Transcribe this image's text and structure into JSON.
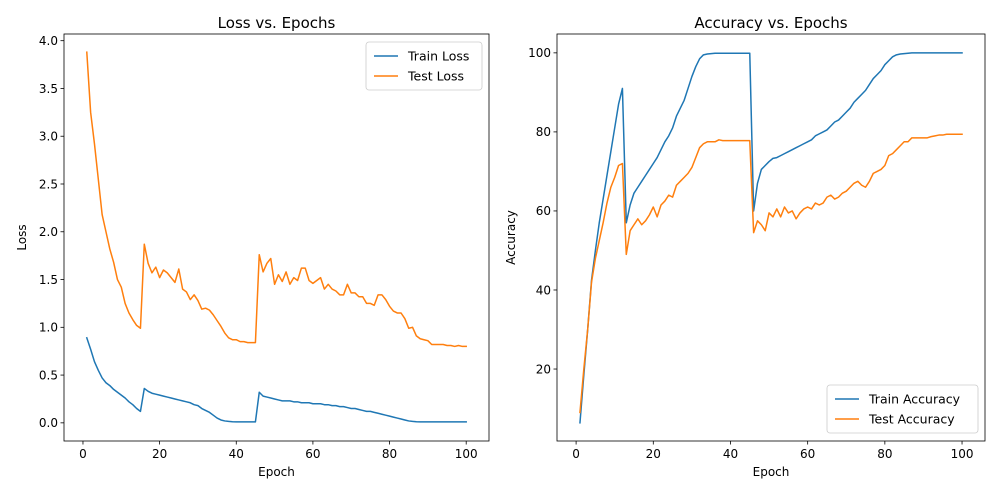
{
  "chart_data": [
    {
      "type": "line",
      "title": "Loss vs. Epochs",
      "xlabel": "Epoch",
      "ylabel": "Loss",
      "xlim": [
        -4.95,
        105.95
      ],
      "ylim": [
        -0.19,
        4.07
      ],
      "xticks": [
        0,
        20,
        40,
        60,
        80,
        100
      ],
      "yticks": [
        0.0,
        0.5,
        1.0,
        1.5,
        2.0,
        2.5,
        3.0,
        3.5,
        4.0
      ],
      "ytick_format": "fixed1",
      "grid": false,
      "legend": "top-right",
      "series": [
        {
          "name": "Train Loss",
          "color": "#1f77b4",
          "x": [
            1,
            2,
            3,
            4,
            5,
            6,
            7,
            8,
            9,
            10,
            11,
            12,
            13,
            14,
            15,
            16,
            17,
            18,
            19,
            20,
            21,
            22,
            23,
            24,
            25,
            26,
            27,
            28,
            29,
            30,
            31,
            32,
            33,
            34,
            35,
            36,
            37,
            38,
            39,
            40,
            41,
            42,
            43,
            44,
            45,
            46,
            47,
            48,
            49,
            50,
            51,
            52,
            53,
            54,
            55,
            56,
            57,
            58,
            59,
            60,
            61,
            62,
            63,
            64,
            65,
            66,
            67,
            68,
            69,
            70,
            71,
            72,
            73,
            74,
            75,
            76,
            77,
            78,
            79,
            80,
            81,
            82,
            83,
            84,
            85,
            86,
            87,
            88,
            89,
            90,
            91,
            92,
            93,
            94,
            95,
            96,
            97,
            98,
            99,
            100
          ],
          "y": [
            0.89,
            0.77,
            0.64,
            0.55,
            0.47,
            0.42,
            0.39,
            0.35,
            0.32,
            0.29,
            0.26,
            0.22,
            0.19,
            0.15,
            0.12,
            0.36,
            0.33,
            0.31,
            0.3,
            0.29,
            0.28,
            0.27,
            0.26,
            0.25,
            0.24,
            0.23,
            0.22,
            0.21,
            0.19,
            0.18,
            0.15,
            0.13,
            0.11,
            0.08,
            0.05,
            0.03,
            0.02,
            0.015,
            0.012,
            0.01,
            0.01,
            0.01,
            0.01,
            0.01,
            0.01,
            0.32,
            0.28,
            0.27,
            0.26,
            0.25,
            0.24,
            0.23,
            0.23,
            0.23,
            0.22,
            0.22,
            0.21,
            0.21,
            0.21,
            0.2,
            0.2,
            0.2,
            0.19,
            0.19,
            0.18,
            0.18,
            0.17,
            0.17,
            0.16,
            0.15,
            0.15,
            0.14,
            0.13,
            0.12,
            0.12,
            0.11,
            0.1,
            0.09,
            0.08,
            0.07,
            0.06,
            0.05,
            0.04,
            0.03,
            0.02,
            0.015,
            0.012,
            0.01,
            0.01,
            0.01,
            0.01,
            0.01,
            0.01,
            0.01,
            0.01,
            0.01,
            0.01,
            0.01,
            0.01,
            0.01
          ]
        },
        {
          "name": "Test Loss",
          "color": "#ff7f0e",
          "x": [
            1,
            2,
            3,
            4,
            5,
            6,
            7,
            8,
            9,
            10,
            11,
            12,
            13,
            14,
            15,
            16,
            17,
            18,
            19,
            20,
            21,
            22,
            23,
            24,
            25,
            26,
            27,
            28,
            29,
            30,
            31,
            32,
            33,
            34,
            35,
            36,
            37,
            38,
            39,
            40,
            41,
            42,
            43,
            44,
            45,
            46,
            47,
            48,
            49,
            50,
            51,
            52,
            53,
            54,
            55,
            56,
            57,
            58,
            59,
            60,
            61,
            62,
            63,
            64,
            65,
            66,
            67,
            68,
            69,
            70,
            71,
            72,
            73,
            74,
            75,
            76,
            77,
            78,
            79,
            80,
            81,
            82,
            83,
            84,
            85,
            86,
            87,
            88,
            89,
            90,
            91,
            92,
            93,
            94,
            95,
            96,
            97,
            98,
            99,
            100
          ],
          "y": [
            3.88,
            3.25,
            2.92,
            2.55,
            2.18,
            2.0,
            1.82,
            1.68,
            1.5,
            1.42,
            1.25,
            1.15,
            1.08,
            1.02,
            0.99,
            1.87,
            1.67,
            1.57,
            1.63,
            1.52,
            1.6,
            1.57,
            1.52,
            1.47,
            1.61,
            1.4,
            1.37,
            1.29,
            1.34,
            1.28,
            1.19,
            1.2,
            1.18,
            1.13,
            1.07,
            1.01,
            0.94,
            0.89,
            0.87,
            0.87,
            0.85,
            0.85,
            0.84,
            0.84,
            0.84,
            1.76,
            1.58,
            1.67,
            1.72,
            1.45,
            1.55,
            1.48,
            1.58,
            1.45,
            1.52,
            1.49,
            1.62,
            1.62,
            1.49,
            1.46,
            1.49,
            1.52,
            1.4,
            1.45,
            1.4,
            1.38,
            1.34,
            1.34,
            1.45,
            1.36,
            1.36,
            1.32,
            1.32,
            1.25,
            1.25,
            1.23,
            1.34,
            1.34,
            1.29,
            1.22,
            1.17,
            1.15,
            1.15,
            1.09,
            0.99,
            1.0,
            0.91,
            0.88,
            0.87,
            0.86,
            0.82,
            0.82,
            0.82,
            0.82,
            0.81,
            0.81,
            0.8,
            0.81,
            0.8,
            0.8
          ]
        }
      ]
    },
    {
      "type": "line",
      "title": "Accuracy vs. Epochs",
      "xlabel": "Epoch",
      "ylabel": "Accuracy",
      "xlim": [
        -4.95,
        105.95
      ],
      "ylim": [
        1.79,
        104.77
      ],
      "xticks": [
        0,
        20,
        40,
        60,
        80,
        100
      ],
      "yticks": [
        20,
        40,
        60,
        80,
        100
      ],
      "ytick_format": "int",
      "grid": false,
      "legend": "bottom-right",
      "series": [
        {
          "name": "Train Accuracy",
          "color": "#1f77b4",
          "x": [
            1,
            2,
            3,
            4,
            5,
            6,
            7,
            8,
            9,
            10,
            11,
            12,
            13,
            14,
            15,
            16,
            17,
            18,
            19,
            20,
            21,
            22,
            23,
            24,
            25,
            26,
            27,
            28,
            29,
            30,
            31,
            32,
            33,
            34,
            35,
            36,
            37,
            38,
            39,
            40,
            41,
            42,
            43,
            44,
            45,
            46,
            47,
            48,
            49,
            50,
            51,
            52,
            53,
            54,
            55,
            56,
            57,
            58,
            59,
            60,
            61,
            62,
            63,
            64,
            65,
            66,
            67,
            68,
            69,
            70,
            71,
            72,
            73,
            74,
            75,
            76,
            77,
            78,
            79,
            80,
            81,
            82,
            83,
            84,
            85,
            86,
            87,
            88,
            89,
            90,
            91,
            92,
            93,
            94,
            95,
            96,
            97,
            98,
            99,
            100
          ],
          "y": [
            6.4,
            18.5,
            30.0,
            42.5,
            50.0,
            57.0,
            63.0,
            69.0,
            75.0,
            81.0,
            87.0,
            91.0,
            57.0,
            61.5,
            64.5,
            66.0,
            67.5,
            69.0,
            70.5,
            72.0,
            73.5,
            75.5,
            77.5,
            79.0,
            81.0,
            84.0,
            86.0,
            88.0,
            91.0,
            94.0,
            96.5,
            98.5,
            99.5,
            99.7,
            99.8,
            99.9,
            99.9,
            99.9,
            99.9,
            99.9,
            99.9,
            99.9,
            99.9,
            99.9,
            99.9,
            60.0,
            67.0,
            70.5,
            71.5,
            72.5,
            73.3,
            73.5,
            74.0,
            74.5,
            75.0,
            75.5,
            76.0,
            76.5,
            77.0,
            77.5,
            78.0,
            79.0,
            79.5,
            80.0,
            80.5,
            81.5,
            82.5,
            83.0,
            84.0,
            85.0,
            86.0,
            87.5,
            88.5,
            89.5,
            90.5,
            92.0,
            93.5,
            94.5,
            95.5,
            97.0,
            98.0,
            99.0,
            99.5,
            99.7,
            99.8,
            99.9,
            100.0,
            100.0,
            100.0,
            100.0,
            100.0,
            100.0,
            100.0,
            100.0,
            100.0,
            100.0,
            100.0,
            100.0,
            100.0,
            100.0
          ]
        },
        {
          "name": "Test Accuracy",
          "color": "#ff7f0e",
          "x": [
            1,
            2,
            3,
            4,
            5,
            6,
            7,
            8,
            9,
            10,
            11,
            12,
            13,
            14,
            15,
            16,
            17,
            18,
            19,
            20,
            21,
            22,
            23,
            24,
            25,
            26,
            27,
            28,
            29,
            30,
            31,
            32,
            33,
            34,
            35,
            36,
            37,
            38,
            39,
            40,
            41,
            42,
            43,
            44,
            45,
            46,
            47,
            48,
            49,
            50,
            51,
            52,
            53,
            54,
            55,
            56,
            57,
            58,
            59,
            60,
            61,
            62,
            63,
            64,
            65,
            66,
            67,
            68,
            69,
            70,
            71,
            72,
            73,
            74,
            75,
            76,
            77,
            78,
            79,
            80,
            81,
            82,
            83,
            84,
            85,
            86,
            87,
            88,
            89,
            90,
            91,
            92,
            93,
            94,
            95,
            96,
            97,
            98,
            99,
            100
          ],
          "y": [
            9.0,
            20.0,
            30.0,
            42.0,
            48.0,
            52.5,
            57.0,
            62.0,
            66.0,
            68.5,
            71.5,
            72.0,
            49.0,
            55.0,
            56.5,
            58.0,
            56.5,
            57.5,
            59.0,
            61.0,
            58.5,
            61.5,
            62.5,
            64.0,
            63.5,
            66.5,
            67.5,
            68.5,
            69.5,
            71.0,
            73.5,
            76.0,
            77.0,
            77.5,
            77.5,
            77.5,
            78.0,
            77.8,
            77.8,
            77.8,
            77.8,
            77.8,
            77.8,
            77.8,
            77.8,
            54.5,
            57.5,
            56.5,
            55.0,
            59.5,
            58.5,
            60.5,
            58.5,
            61.0,
            59.5,
            60.0,
            58.0,
            59.5,
            60.5,
            61.0,
            60.5,
            62.0,
            61.5,
            62.0,
            63.5,
            64.0,
            63.0,
            63.5,
            64.5,
            65.0,
            66.0,
            67.0,
            67.5,
            66.5,
            66.0,
            67.5,
            69.5,
            70.0,
            70.5,
            71.5,
            74.0,
            74.5,
            75.5,
            76.5,
            77.5,
            77.5,
            78.5,
            78.5,
            78.5,
            78.5,
            78.5,
            78.8,
            79.0,
            79.2,
            79.2,
            79.4,
            79.4,
            79.4,
            79.4,
            79.4
          ]
        }
      ]
    }
  ]
}
